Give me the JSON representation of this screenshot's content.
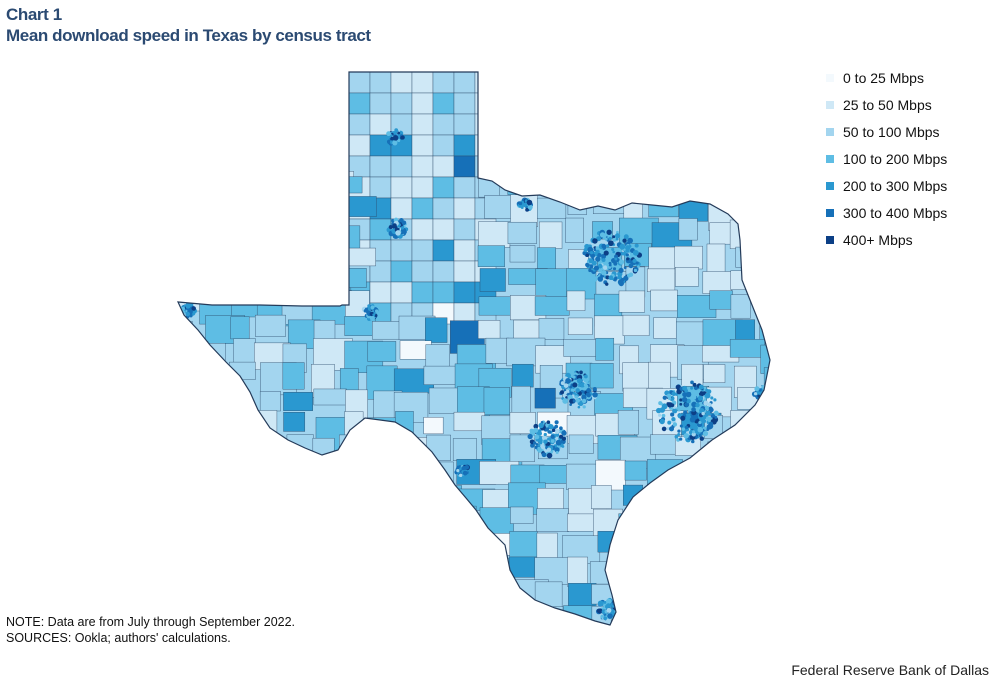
{
  "header": {
    "chart_label": "Chart 1",
    "title": "Mean download speed in Texas by census tract"
  },
  "legend": {
    "placement": "top-right",
    "items": [
      {
        "label": "0 to 25 Mbps",
        "color": "#f3f9fd"
      },
      {
        "label": "25 to 50 Mbps",
        "color": "#cfe8f6"
      },
      {
        "label": "50 to 100 Mbps",
        "color": "#a3d5ef"
      },
      {
        "label": "100 to 200 Mbps",
        "color": "#5ebde4"
      },
      {
        "label": "200 to 300 Mbps",
        "color": "#2a98d0"
      },
      {
        "label": "300 to 400 Mbps",
        "color": "#1670b8"
      },
      {
        "label": "400+ Mbps",
        "color": "#0c3f86"
      }
    ]
  },
  "map": {
    "region": "Texas",
    "unit": "census tract",
    "outline_color": "#243b5a"
  },
  "footer": {
    "note": "NOTE: Data are from July through September 2022.",
    "sources": "SOURCES: Ookla; authors' calculations.",
    "credit": "Federal Reserve Bank of Dallas"
  }
}
